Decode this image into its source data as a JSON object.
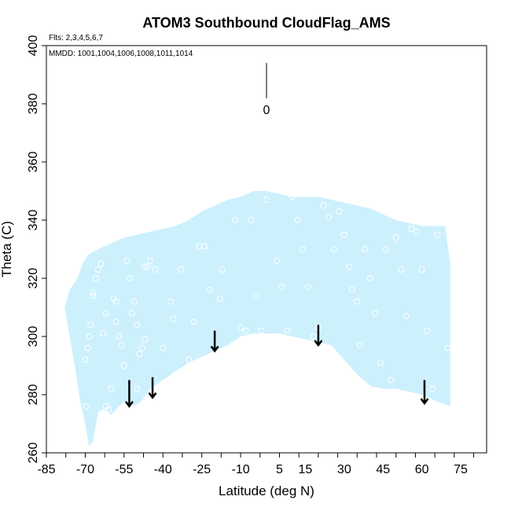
{
  "chart_data": {
    "type": "scatter",
    "title": "ATOM3 Southbound CloudFlag_AMS",
    "subtitle_flights": "Flts: 2,3,4,5,6,7",
    "subtitle_dates": "MMDD: 1001,1004,1006,1008,1011,1014",
    "xlabel": "Latitude (deg N)",
    "ylabel": "Theta (C)",
    "xlim": [
      -85,
      85
    ],
    "ylim": [
      260,
      400
    ],
    "x_ticks_labeled": [
      "-85",
      "-70",
      "-55",
      "-40",
      "-25",
      "-10",
      "5",
      "15",
      "30",
      "45",
      "60",
      "75"
    ],
    "x_ticks_labeled_values": [
      -85,
      -70,
      -55,
      -40,
      -25,
      -10,
      5,
      15,
      30,
      45,
      60,
      75
    ],
    "y_ticks": [
      "260",
      "280",
      "300",
      "320",
      "340",
      "360",
      "380",
      "400"
    ],
    "y_ticks_values": [
      260,
      280,
      300,
      320,
      340,
      360,
      380,
      400
    ],
    "legend": {
      "scale_label": "0",
      "position": "top-center"
    },
    "grid": false,
    "colors": {
      "fill": "#cdf0fd",
      "points": "#ffffff",
      "arrows": "#000000",
      "axis": "#000000"
    },
    "coverage": {
      "upper": [
        [
          -78,
          310
        ],
        [
          -76,
          316
        ],
        [
          -73,
          320
        ],
        [
          -71,
          325
        ],
        [
          -69,
          328
        ],
        [
          -65,
          330
        ],
        [
          -60,
          332
        ],
        [
          -55,
          334
        ],
        [
          -50,
          335
        ],
        [
          -45,
          336
        ],
        [
          -40,
          337
        ],
        [
          -35,
          338
        ],
        [
          -30,
          340
        ],
        [
          -25,
          343
        ],
        [
          -20,
          345
        ],
        [
          -15,
          347
        ],
        [
          -10,
          348
        ],
        [
          -5,
          350
        ],
        [
          0,
          350
        ],
        [
          5,
          349
        ],
        [
          10,
          348
        ],
        [
          15,
          348
        ],
        [
          20,
          348
        ],
        [
          25,
          347
        ],
        [
          30,
          346
        ],
        [
          35,
          345
        ],
        [
          40,
          344
        ],
        [
          45,
          342
        ],
        [
          50,
          340
        ],
        [
          55,
          339
        ],
        [
          60,
          338
        ],
        [
          65,
          338
        ],
        [
          69,
          338
        ],
        [
          70,
          331
        ],
        [
          71,
          325
        ],
        [
          71,
          276
        ]
      ],
      "lower": [
        [
          -78,
          310
        ],
        [
          -76,
          300
        ],
        [
          -74,
          290
        ],
        [
          -72,
          278
        ],
        [
          -70,
          270
        ],
        [
          -68.5,
          262
        ],
        [
          -67,
          264
        ],
        [
          -65,
          274
        ],
        [
          -63,
          275
        ],
        [
          -60,
          273
        ],
        [
          -57,
          276
        ],
        [
          -54,
          278
        ],
        [
          -51,
          276
        ],
        [
          -48,
          278
        ],
        [
          -45,
          282
        ],
        [
          -40,
          285
        ],
        [
          -35,
          288
        ],
        [
          -30,
          291
        ],
        [
          -25,
          293
        ],
        [
          -20,
          295
        ],
        [
          -15,
          297
        ],
        [
          -10,
          300
        ],
        [
          -5,
          301
        ],
        [
          0,
          301
        ],
        [
          5,
          301
        ],
        [
          10,
          300
        ],
        [
          15,
          299
        ],
        [
          20,
          298
        ],
        [
          25,
          297
        ],
        [
          30,
          292
        ],
        [
          35,
          287
        ],
        [
          40,
          283
        ],
        [
          45,
          282
        ],
        [
          50,
          282
        ],
        [
          55,
          281
        ],
        [
          60,
          280
        ],
        [
          65,
          278
        ],
        [
          68,
          277
        ],
        [
          71,
          276
        ]
      ]
    },
    "cloud_points": [
      [
        -70,
        292
      ],
      [
        -69.5,
        276
      ],
      [
        -69,
        296
      ],
      [
        -68.5,
        300
      ],
      [
        -68,
        304
      ],
      [
        -67,
        315
      ],
      [
        -67,
        314
      ],
      [
        -66,
        320
      ],
      [
        -65,
        323
      ],
      [
        -64,
        325
      ],
      [
        -63,
        301
      ],
      [
        -62,
        308
      ],
      [
        -62,
        276
      ],
      [
        -61,
        275
      ],
      [
        -60,
        282
      ],
      [
        -59,
        313
      ],
      [
        -58,
        312
      ],
      [
        -58,
        305
      ],
      [
        -57,
        300
      ],
      [
        -56,
        297
      ],
      [
        -55,
        290
      ],
      [
        -54,
        326
      ],
      [
        -53,
        320
      ],
      [
        -52,
        308
      ],
      [
        -51,
        312
      ],
      [
        -50,
        304
      ],
      [
        -50,
        282
      ],
      [
        -49,
        294
      ],
      [
        -48,
        296
      ],
      [
        -47,
        299
      ],
      [
        -47,
        324
      ],
      [
        -46,
        324
      ],
      [
        -45,
        326
      ],
      [
        -43,
        323
      ],
      [
        -40,
        296
      ],
      [
        -37,
        312
      ],
      [
        -36,
        306
      ],
      [
        -35,
        287
      ],
      [
        -33,
        323
      ],
      [
        -30,
        292
      ],
      [
        -28,
        305
      ],
      [
        -26,
        331
      ],
      [
        -24,
        331
      ],
      [
        -22,
        316
      ],
      [
        -20,
        296
      ],
      [
        -18,
        313
      ],
      [
        -17,
        323
      ],
      [
        -15,
        294
      ],
      [
        -12,
        340
      ],
      [
        -10,
        303
      ],
      [
        -8,
        302
      ],
      [
        -6,
        340
      ],
      [
        -4,
        314
      ],
      [
        -2,
        302
      ],
      [
        0,
        347
      ],
      [
        4,
        326
      ],
      [
        6,
        317
      ],
      [
        8,
        302
      ],
      [
        10,
        348
      ],
      [
        12,
        340
      ],
      [
        14,
        330
      ],
      [
        16,
        317
      ],
      [
        18,
        300
      ],
      [
        20,
        303
      ],
      [
        22,
        345
      ],
      [
        24,
        341
      ],
      [
        26,
        330
      ],
      [
        28,
        343
      ],
      [
        30,
        335
      ],
      [
        32,
        324
      ],
      [
        33,
        316
      ],
      [
        35,
        312
      ],
      [
        36,
        297
      ],
      [
        38,
        330
      ],
      [
        40,
        320
      ],
      [
        42,
        308
      ],
      [
        44,
        291
      ],
      [
        46,
        330
      ],
      [
        48,
        285
      ],
      [
        50,
        334
      ],
      [
        52,
        323
      ],
      [
        54,
        307
      ],
      [
        56,
        337
      ],
      [
        58,
        336
      ],
      [
        60,
        323
      ],
      [
        62,
        302
      ],
      [
        64,
        282
      ],
      [
        66,
        335
      ],
      [
        70,
        296
      ]
    ],
    "arrows": [
      {
        "x": -53,
        "top": 285,
        "bottom": 276
      },
      {
        "x": -44,
        "top": 286,
        "bottom": 279
      },
      {
        "x": -20,
        "top": 302,
        "bottom": 295
      },
      {
        "x": 20,
        "top": 304,
        "bottom": 297
      },
      {
        "x": 61,
        "top": 285,
        "bottom": 277
      }
    ]
  }
}
